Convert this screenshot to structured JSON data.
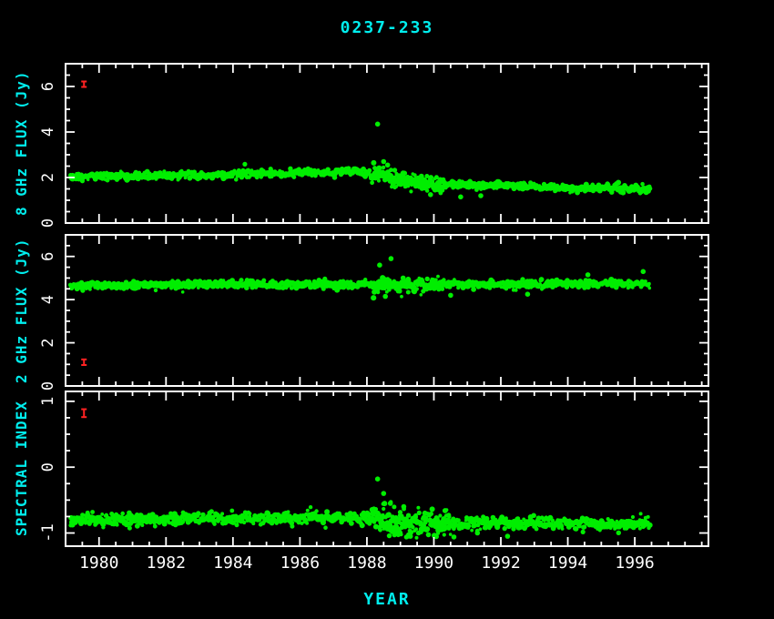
{
  "colors": {
    "background": "#000000",
    "axis": "#ffffff",
    "tick_label": "#ffffff",
    "text_label": "#00eeee",
    "data_point": "#00ee00",
    "error_bar": "#ff2222"
  },
  "chart_data": {
    "type": "scatter",
    "title": "0237-233",
    "xlabel": "YEAR",
    "legend": "none",
    "grid": false,
    "x_range": [
      1979.0,
      1998.2
    ],
    "data_x_range": [
      1979.15,
      1996.45
    ],
    "x_major_ticks": [
      1980,
      1982,
      1984,
      1986,
      1988,
      1990,
      1992,
      1994,
      1996
    ],
    "x_minor_step": 0.5,
    "sample_step_years": 0.018,
    "noise_seed": 1337,
    "panels": [
      {
        "id": "flux-8ghz",
        "ylabel": "8 GHz FLUX (Jy)",
        "ylim": [
          0,
          7
        ],
        "major_ticks": [
          0,
          2,
          4,
          6
        ],
        "minor_step": 0.5,
        "trend": [
          [
            1979.15,
            2.05
          ],
          [
            1983.0,
            2.1
          ],
          [
            1985.5,
            2.2
          ],
          [
            1987.9,
            2.25
          ],
          [
            1988.4,
            2.05
          ],
          [
            1989.2,
            1.85
          ],
          [
            1990.2,
            1.7
          ],
          [
            1992.0,
            1.65
          ],
          [
            1994.0,
            1.55
          ],
          [
            1996.45,
            1.5
          ]
        ],
        "noise_sigma": 0.08,
        "extra_scatter": {
          "range": [
            1988.15,
            1990.3
          ],
          "factor": 2.2,
          "extra_density": 0.6
        },
        "outliers": [
          [
            1988.32,
            4.35
          ],
          [
            1988.5,
            2.7
          ],
          [
            1988.62,
            2.55
          ],
          [
            1989.9,
            1.25
          ],
          [
            1990.8,
            1.15
          ],
          [
            1991.4,
            1.2
          ]
        ],
        "errorbar": {
          "x": 1979.55,
          "y": 6.1,
          "half_height": 0.12
        }
      },
      {
        "id": "flux-2ghz",
        "ylabel": "2 GHz FLUX (Jy)",
        "ylim": [
          0,
          7
        ],
        "major_ticks": [
          0,
          2,
          4,
          6
        ],
        "minor_step": 0.5,
        "trend": [
          [
            1979.15,
            4.65
          ],
          [
            1984.0,
            4.7
          ],
          [
            1988.0,
            4.68
          ],
          [
            1992.0,
            4.72
          ],
          [
            1996.45,
            4.75
          ]
        ],
        "noise_sigma": 0.09,
        "extra_scatter": {
          "range": [
            1988.15,
            1990.3
          ],
          "factor": 1.8,
          "extra_density": 0.5
        },
        "outliers": [
          [
            1988.38,
            5.6
          ],
          [
            1988.72,
            5.9
          ],
          [
            1988.55,
            4.15
          ],
          [
            1990.5,
            4.2
          ],
          [
            1992.8,
            4.25
          ],
          [
            1994.6,
            5.15
          ],
          [
            1996.25,
            5.3
          ]
        ],
        "errorbar": {
          "x": 1979.55,
          "y": 1.1,
          "half_height": 0.13
        }
      },
      {
        "id": "spectral-index",
        "ylabel": "SPECTRAL INDEX",
        "ylim": [
          -1.2,
          1.15
        ],
        "major_ticks": [
          -1,
          0,
          1
        ],
        "minor_step": 0.25,
        "trend": [
          [
            1979.15,
            -0.8
          ],
          [
            1984.0,
            -0.78
          ],
          [
            1987.9,
            -0.76
          ],
          [
            1988.6,
            -0.84
          ],
          [
            1990.0,
            -0.86
          ],
          [
            1993.0,
            -0.85
          ],
          [
            1996.45,
            -0.87
          ]
        ],
        "noise_sigma": 0.045,
        "extra_scatter": {
          "range": [
            1988.15,
            1990.5
          ],
          "factor": 2.3,
          "extra_density": 0.6
        },
        "outliers": [
          [
            1988.32,
            -0.18
          ],
          [
            1988.5,
            -0.4
          ],
          [
            1988.7,
            -0.55
          ],
          [
            1989.1,
            -0.6
          ],
          [
            1989.3,
            -1.05
          ],
          [
            1990.6,
            -1.06
          ],
          [
            1991.3,
            -1.0
          ],
          [
            1992.2,
            -1.05
          ]
        ],
        "errorbar": {
          "x": 1979.55,
          "y": 0.82,
          "half_height": 0.06
        }
      }
    ]
  }
}
